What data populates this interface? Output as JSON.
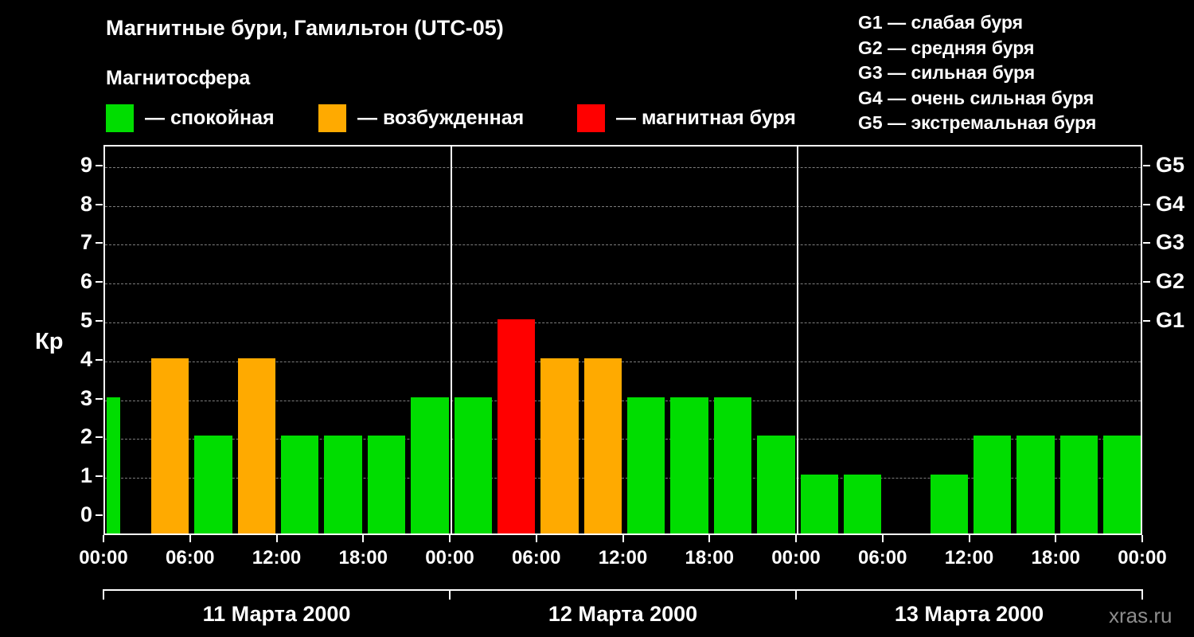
{
  "header": {
    "title": "Магнитные бури, Гамильтон (UTC-05)",
    "subtitle": "Магнитосфера"
  },
  "legend": {
    "items": [
      {
        "key": "quiet",
        "label": "— спокойная",
        "color": "#00dd00"
      },
      {
        "key": "excited",
        "label": "— возбужденная",
        "color": "#ffaa00"
      },
      {
        "key": "storm",
        "label": "— магнитная буря",
        "color": "#ff0000"
      }
    ]
  },
  "g_legend": {
    "items": [
      "G1 — слабая буря",
      "G2 — средняя буря",
      "G3 — сильная буря",
      "G4 — очень сильная буря",
      "G5 — экстремальная буря"
    ]
  },
  "watermark": "xras.ru",
  "chart_data": {
    "type": "bar",
    "title": "Магнитные бури, Гамильтон (UTC-05)",
    "ylabel": "Кр",
    "ylim": [
      0,
      9
    ],
    "y_ticks": [
      0,
      1,
      2,
      3,
      4,
      5,
      6,
      7,
      8,
      9
    ],
    "hours_per_bar": 3,
    "grid": "dashed-horizontal",
    "colors": {
      "quiet": "#00dd00",
      "excited": "#ffaa00",
      "storm": "#ff0000"
    },
    "right_axis_labels": [
      {
        "label": "G1",
        "kp": 5
      },
      {
        "label": "G2",
        "kp": 6
      },
      {
        "label": "G3",
        "kp": 7
      },
      {
        "label": "G4",
        "kp": 8
      },
      {
        "label": "G5",
        "kp": 9
      }
    ],
    "x_tick_labels": [
      "00:00",
      "06:00",
      "12:00",
      "18:00",
      "00:00",
      "06:00",
      "12:00",
      "18:00",
      "00:00",
      "06:00",
      "12:00",
      "18:00",
      "00:00"
    ],
    "days": [
      {
        "date": "11 Марта 2000",
        "bars": [
          {
            "kp": 3,
            "state": "quiet",
            "narrow": true
          },
          {
            "kp": 4,
            "state": "excited"
          },
          {
            "kp": 2,
            "state": "quiet"
          },
          {
            "kp": 4,
            "state": "excited"
          },
          {
            "kp": 2,
            "state": "quiet"
          },
          {
            "kp": 2,
            "state": "quiet"
          },
          {
            "kp": 2,
            "state": "quiet"
          },
          {
            "kp": 3,
            "state": "quiet"
          }
        ]
      },
      {
        "date": "12 Марта 2000",
        "bars": [
          {
            "kp": 3,
            "state": "quiet"
          },
          {
            "kp": 5,
            "state": "storm"
          },
          {
            "kp": 4,
            "state": "excited"
          },
          {
            "kp": 4,
            "state": "excited"
          },
          {
            "kp": 3,
            "state": "quiet"
          },
          {
            "kp": 3,
            "state": "quiet"
          },
          {
            "kp": 3,
            "state": "quiet"
          },
          {
            "kp": 2,
            "state": "quiet"
          }
        ]
      },
      {
        "date": "13 Марта 2000",
        "bars": [
          {
            "kp": 1,
            "state": "quiet"
          },
          {
            "kp": 1,
            "state": "quiet"
          },
          {
            "kp": null,
            "state": null
          },
          {
            "kp": 1,
            "state": "quiet"
          },
          {
            "kp": 2,
            "state": "quiet"
          },
          {
            "kp": 2,
            "state": "quiet"
          },
          {
            "kp": 2,
            "state": "quiet"
          },
          {
            "kp": 2,
            "state": "quiet"
          }
        ]
      }
    ]
  }
}
